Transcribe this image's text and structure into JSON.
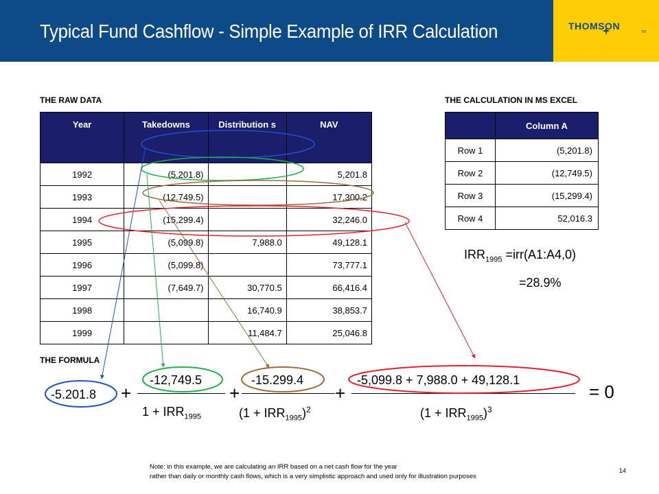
{
  "header": {
    "title": "Typical Fund Cashflow - Simple Example of IRR Calculation",
    "logo": "THOMSON",
    "logo_tm": "TM",
    "brand_blue": "#0e4a86",
    "brand_yellow": "#ffcd05"
  },
  "raw_data": {
    "label": "THE RAW DATA",
    "columns": [
      "Year",
      "Takedowns",
      "Distribution s",
      "NAV"
    ],
    "rows": [
      [
        "1992",
        "(5,201.8)",
        "",
        "5,201.8"
      ],
      [
        "1993",
        "(12,749.5)",
        "",
        "17,300.2"
      ],
      [
        "1994",
        "(15,299.4)",
        "",
        "32,246.0"
      ],
      [
        "1995",
        "(5,099.8)",
        "7,988.0",
        "49,128.1"
      ],
      [
        "1996",
        "(5,099.8)",
        "",
        "73,777.1"
      ],
      [
        "1997",
        "(7,649.7)",
        "30,770.5",
        "66,416.4"
      ],
      [
        "1998",
        "",
        "16,740.9",
        "38,853.7"
      ],
      [
        "1999",
        "",
        "11,484.7",
        "25,046.8"
      ]
    ]
  },
  "excel": {
    "label": "THE CALCULATION IN MS EXCEL",
    "column_header": "Column A",
    "rows": [
      [
        "Row 1",
        "(5,201.8)"
      ],
      [
        "Row 2",
        "(12,749.5)"
      ],
      [
        "Row 3",
        "(15,299.4)"
      ],
      [
        "Row 4",
        "52,016.3"
      ]
    ],
    "irr_label": "IRR",
    "irr_sub": "1995",
    "irr_formula": " =irr(A1:A4,0)",
    "irr_result": "=28.9%"
  },
  "formula": {
    "label": "THE FORMULA",
    "term0": "-5.201.8",
    "num1": "-12,749.5",
    "num2": "-15.299.4",
    "num3": "-5,099.8 + 7,988.0 + 49,128.1",
    "plus": "+",
    "den1_a": "1 + IRR",
    "den_sub": "1995",
    "den2_a": "(1 + IRR",
    "den2_b": ")",
    "den2_exp": "2",
    "den3_a": "(1 + IRR",
    "den3_b": ")",
    "den3_exp": "3",
    "equals": "=  0"
  },
  "note": {
    "line1": "Note: in this example, we are calculating an IRR based on a net cash flow for the year",
    "line2": "rather than daily or monthly cash flows, which is a very simplistic approach and used only for illustration purposes"
  },
  "page_number": "14",
  "colors": {
    "blue_ellipse": "#1f4fd0",
    "green_ellipse": "#22b04a",
    "brown_ellipse": "#a06a3c",
    "red_ellipse": "#e0242c",
    "table_header": "#1b1f6b"
  }
}
